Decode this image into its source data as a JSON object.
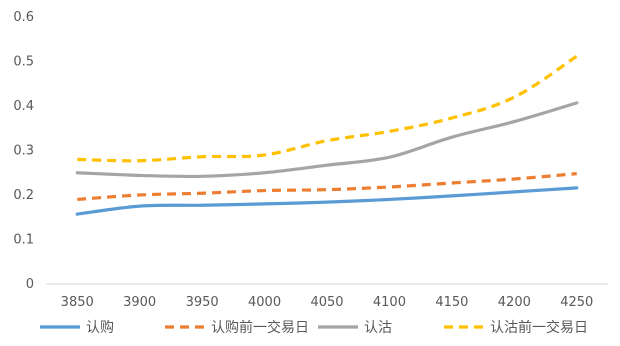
{
  "chart_data": {
    "type": "line",
    "title": "",
    "xlabel": "",
    "ylabel": "",
    "categories": [
      "3850",
      "3900",
      "3950",
      "4000",
      "4050",
      "4100",
      "4150",
      "4200",
      "4250"
    ],
    "ylim": [
      0,
      0.6
    ],
    "yticks": [
      "0",
      "0.1",
      "0.2",
      "0.3",
      "0.4",
      "0.5",
      "0.6"
    ],
    "grid": false,
    "legend_position": "bottom",
    "series": [
      {
        "name": "认购",
        "color": "#5B9BD5",
        "dash": "solid",
        "values": [
          0.157,
          0.175,
          0.177,
          0.18,
          0.184,
          0.19,
          0.198,
          0.207,
          0.216
        ]
      },
      {
        "name": "认购前一交易日",
        "color": "#ED7D31",
        "dash": "dashed",
        "values": [
          0.19,
          0.2,
          0.204,
          0.21,
          0.212,
          0.218,
          0.227,
          0.236,
          0.248
        ]
      },
      {
        "name": "认沽",
        "color": "#A5A5A5",
        "dash": "solid",
        "values": [
          0.25,
          0.244,
          0.242,
          0.25,
          0.267,
          0.285,
          0.33,
          0.365,
          0.407
        ]
      },
      {
        "name": "认沽前一交易日",
        "color": "#FFC000",
        "dash": "dashed",
        "values": [
          0.28,
          0.277,
          0.286,
          0.29,
          0.322,
          0.343,
          0.373,
          0.42,
          0.512
        ]
      }
    ]
  }
}
